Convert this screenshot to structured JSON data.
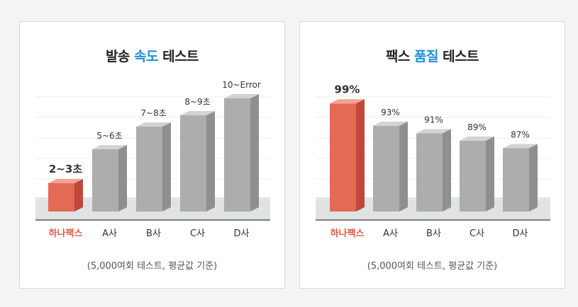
{
  "colors": {
    "accent": "#1e90d6",
    "highlight": "#e05a47",
    "bar_gray": "#a9a9a9"
  },
  "chart_data": [
    {
      "type": "bar",
      "title_prefix": "발송 ",
      "title_highlight": "속도",
      "title_suffix": " 테스트",
      "categories": [
        "하나팩스",
        "A사",
        "B사",
        "C사",
        "D사"
      ],
      "values": [
        2.5,
        5.5,
        7.5,
        8.5,
        10
      ],
      "data_labels": [
        "2~3초",
        "5~6초",
        "7~8초",
        "8~9초",
        "10~Error"
      ],
      "highlight_index": 0,
      "ylim": [
        0,
        10
      ],
      "grid": true,
      "note": "(5,000여회 테스트, 평균값 기준)"
    },
    {
      "type": "bar",
      "title_prefix": "팩스 ",
      "title_highlight": "품질",
      "title_suffix": " 테스트",
      "categories": [
        "하나팩스",
        "A사",
        "B사",
        "C사",
        "D사"
      ],
      "values": [
        99,
        93,
        91,
        89,
        87
      ],
      "data_labels": [
        "99%",
        "93%",
        "91%",
        "89%",
        "87%"
      ],
      "highlight_index": 0,
      "ylim": [
        70,
        100
      ],
      "grid": true,
      "note": "(5,000여회 테스트, 평균값 기준)"
    }
  ]
}
